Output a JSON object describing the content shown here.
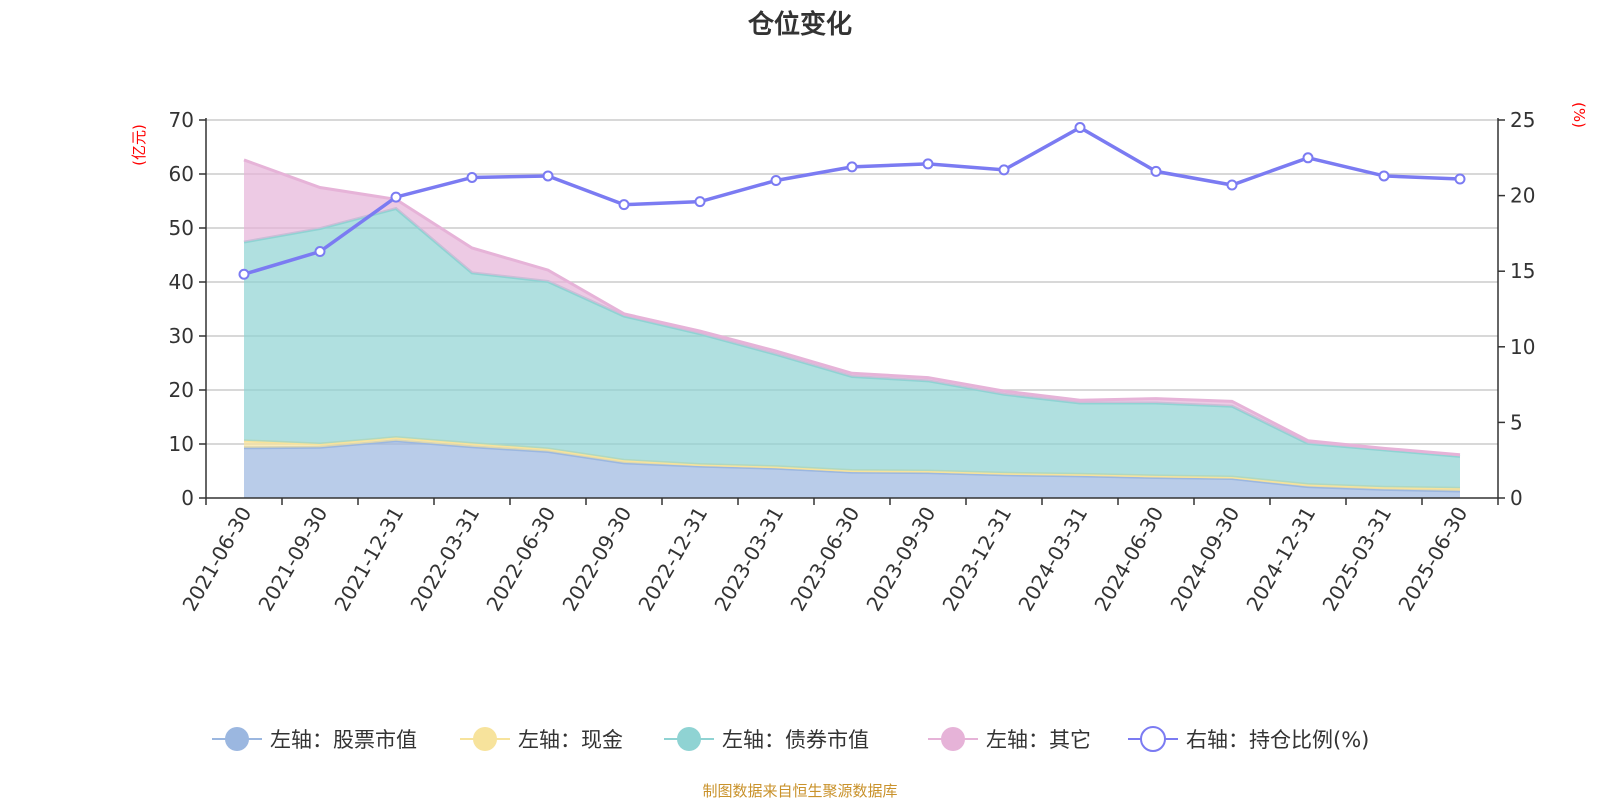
{
  "title": "仓位变化",
  "footer": "制图数据来自恒生聚源数据库",
  "left_unit": "(亿元)",
  "right_unit": "(%)",
  "colors": {
    "stock": "#9bb7e0",
    "cash": "#f7e39c",
    "bond": "#8fd3d3",
    "other": "#e6b3d8",
    "ratio": "#7b7bf2",
    "grid": "#cccccc",
    "unit": "#ff0000",
    "footer": "#c9922b"
  },
  "chart_data": {
    "type": "area",
    "title": "仓位变化",
    "categories": [
      "2021-06-30",
      "2021-09-30",
      "2021-12-31",
      "2022-03-31",
      "2022-06-30",
      "2022-09-30",
      "2022-12-31",
      "2023-03-31",
      "2023-06-30",
      "2023-09-30",
      "2023-12-31",
      "2024-03-31",
      "2024-06-30",
      "2024-09-30",
      "2024-12-31",
      "2025-03-31",
      "2025-06-30"
    ],
    "left_axis": {
      "unit": "(亿元)",
      "ylim": [
        0,
        70
      ],
      "ticks": [
        "0",
        "10",
        "20",
        "30",
        "40",
        "50",
        "60",
        "70"
      ]
    },
    "right_axis": {
      "unit": "(%)",
      "ylim": [
        0,
        25
      ],
      "ticks": [
        "0",
        "5",
        "10",
        "15",
        "20",
        "25"
      ]
    },
    "stacked": true,
    "series": [
      {
        "name": "左轴：股票市值",
        "type": "area",
        "axis": "left",
        "values": [
          9.3,
          9.4,
          10.6,
          9.5,
          8.6,
          6.5,
          5.9,
          5.5,
          4.8,
          4.7,
          4.3,
          4.1,
          3.8,
          3.6,
          2.1,
          1.6,
          1.3
        ]
      },
      {
        "name": "左轴：现金",
        "type": "area",
        "axis": "left",
        "values": [
          1.3,
          0.6,
          0.6,
          0.6,
          0.5,
          0.5,
          0.3,
          0.3,
          0.3,
          0.3,
          0.3,
          0.3,
          0.3,
          0.3,
          0.4,
          0.4,
          0.5
        ]
      },
      {
        "name": "左轴：债券市值",
        "type": "area",
        "axis": "left",
        "values": [
          36.8,
          39.9,
          42.4,
          31.6,
          31.0,
          26.7,
          24.2,
          20.8,
          17.4,
          16.7,
          14.6,
          13.2,
          13.5,
          13.1,
          7.6,
          6.9,
          5.9
        ]
      },
      {
        "name": "左轴：其它",
        "type": "area",
        "axis": "left",
        "values": [
          15.2,
          7.6,
          1.7,
          4.6,
          2.1,
          0.4,
          0.5,
          0.6,
          0.6,
          0.6,
          0.6,
          0.5,
          0.8,
          0.9,
          0.5,
          0.3,
          0.3
        ]
      },
      {
        "name": "右轴：持仓比例(%)",
        "type": "line",
        "axis": "right",
        "values": [
          14.8,
          16.3,
          19.9,
          21.2,
          21.3,
          19.4,
          19.6,
          21.0,
          21.9,
          22.1,
          21.7,
          24.5,
          21.6,
          20.7,
          22.5,
          21.3,
          21.1
        ]
      }
    ],
    "grid": true,
    "legend_position": "bottom"
  }
}
